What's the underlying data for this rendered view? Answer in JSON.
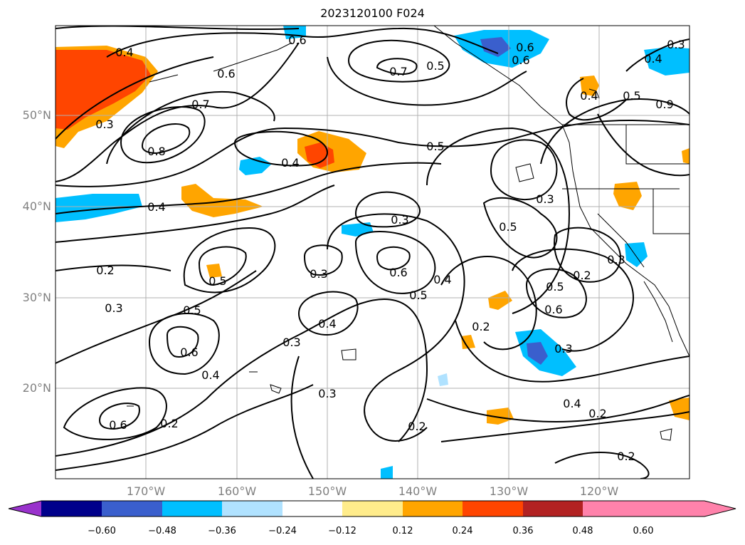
{
  "title": "2023120100 F024",
  "lon_labels": [
    "170°W",
    "160°W",
    "150°W",
    "140°W",
    "130°W",
    "120°W"
  ],
  "lat_labels": [
    "50°N",
    "40°N",
    "30°N",
    "20°N"
  ],
  "colorbar": {
    "colors": [
      "#9932cc",
      "#00008b",
      "#3a5fcd",
      "#00bfff",
      "#b0e2ff",
      "#ffffff",
      "#ffec8b",
      "#ffa500",
      "#ff4500",
      "#b22222",
      "#ff82ab"
    ],
    "ticks": [
      "−0.60",
      "−0.48",
      "−0.36",
      "−0.24",
      "−0.12",
      "0.12",
      "0.24",
      "0.36",
      "0.48",
      "0.60"
    ]
  },
  "contour_labels": [
    "0.4",
    "0.6",
    "0.7",
    "0.6",
    "0.6",
    "0.4",
    "0.5",
    "0.9",
    "0.7",
    "0.8",
    "0.4",
    "0.4",
    "0.3",
    "0.5",
    "0.5",
    "0.3",
    "0.4",
    "0.5",
    "0.3",
    "0.2",
    "0.3",
    "0.5",
    "0.3",
    "0.6",
    "0.5",
    "0.4",
    "0.3",
    "0.6",
    "0.5",
    "0.2",
    "0.5",
    "0.3",
    "0.6",
    "0.2",
    "0.3",
    "0.4",
    "0.2",
    "0.6",
    "0.4",
    "0.3",
    "0.6",
    "0.2",
    "0.4",
    "0.2",
    "0.2",
    "0.3"
  ]
}
